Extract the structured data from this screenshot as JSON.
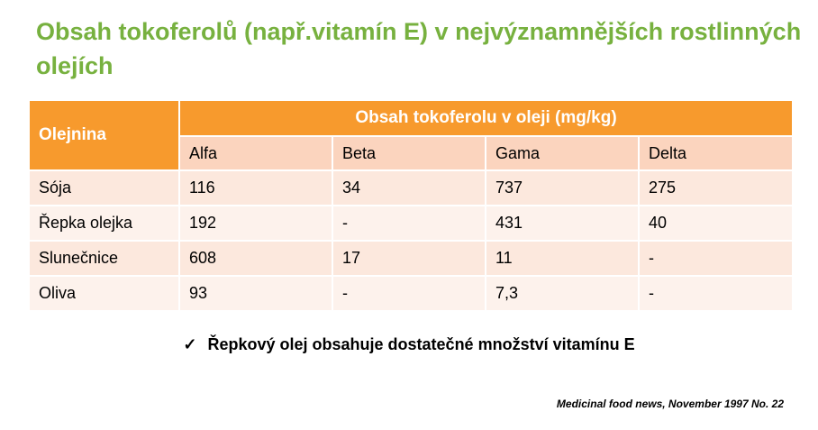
{
  "title": "Obsah tokoferolů (např.vitamín E) v nejvýznamnějších rostlinných olejích",
  "table": {
    "row_header": "Olejnina",
    "group_header": "Obsah tokoferolu v oleji (mg/kg)",
    "columns": [
      "Alfa",
      "Beta",
      "Gama",
      "Delta"
    ],
    "rows": [
      [
        "Sója",
        "116",
        "34",
        "737",
        "275"
      ],
      [
        "Řepka olejka",
        "192",
        "-",
        "431",
        "40"
      ],
      [
        "Slunečnice",
        "608",
        "17",
        "11",
        "-"
      ],
      [
        "Oliva",
        "93",
        "-",
        "7,3",
        "-"
      ]
    ]
  },
  "note": {
    "bullet": "✓",
    "text": "Řepkový olej obsahuje dostatečné množství vitamínu E"
  },
  "citation": "Medicinal food news, November 1997 No. 22"
}
